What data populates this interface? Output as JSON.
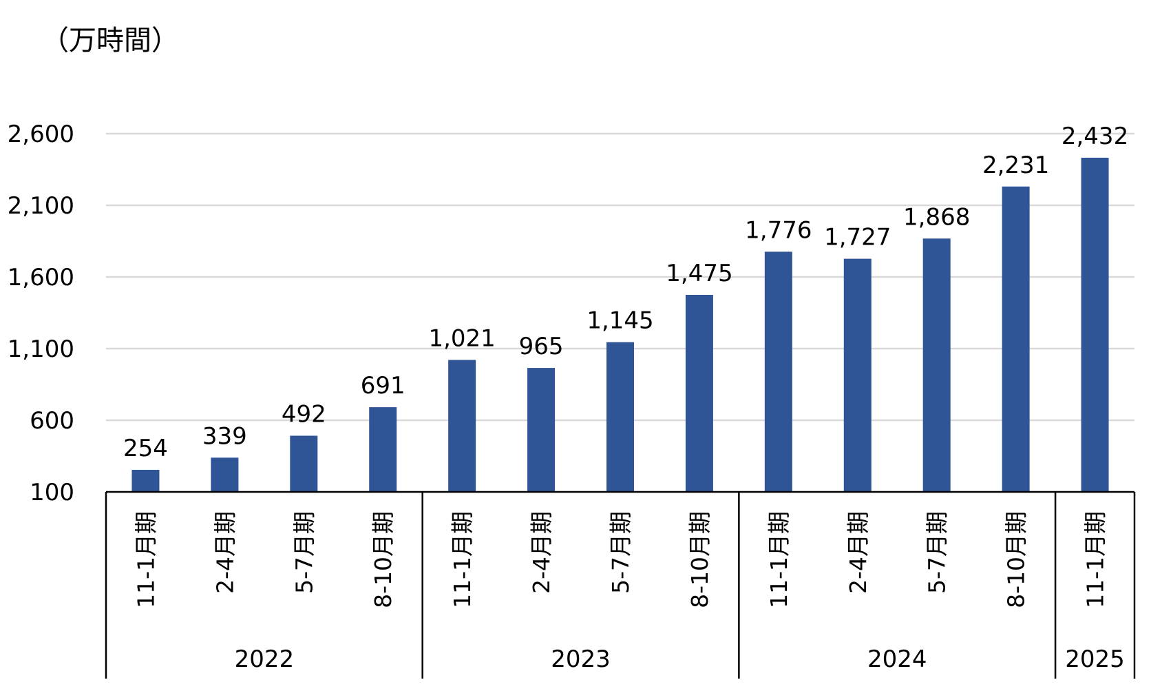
{
  "chart_data": {
    "type": "bar",
    "title": "",
    "unit_label": "（万時間）",
    "xlabel": "",
    "ylabel": "",
    "ylim": [
      100,
      2600
    ],
    "y_ticks": [
      100,
      600,
      1100,
      1600,
      2100,
      2600
    ],
    "y_tick_labels": [
      "100",
      "600",
      "1,100",
      "1,600",
      "2,100",
      "2,600"
    ],
    "grid": true,
    "bar_color": "#2F5597",
    "gridline_color": "#D9D9D9",
    "categories": [
      "11-1月期",
      "2-4月期",
      "5-7月期",
      "8-10月期",
      "11-1月期",
      "2-4月期",
      "5-7月期",
      "8-10月期",
      "11-1月期",
      "2-4月期",
      "5-7月期",
      "8-10月期",
      "11-1月期"
    ],
    "values": [
      254,
      339,
      492,
      691,
      1021,
      965,
      1145,
      1475,
      1776,
      1727,
      1868,
      2231,
      2432
    ],
    "value_labels": [
      "254",
      "339",
      "492",
      "691",
      "1,021",
      "965",
      "1,145",
      "1,475",
      "1,776",
      "1,727",
      "1,868",
      "2,231",
      "2,432"
    ],
    "groups": [
      {
        "label": "2022",
        "count": 4
      },
      {
        "label": "2023",
        "count": 4
      },
      {
        "label": "2024",
        "count": 4
      },
      {
        "label": "2025",
        "count": 1
      }
    ]
  }
}
